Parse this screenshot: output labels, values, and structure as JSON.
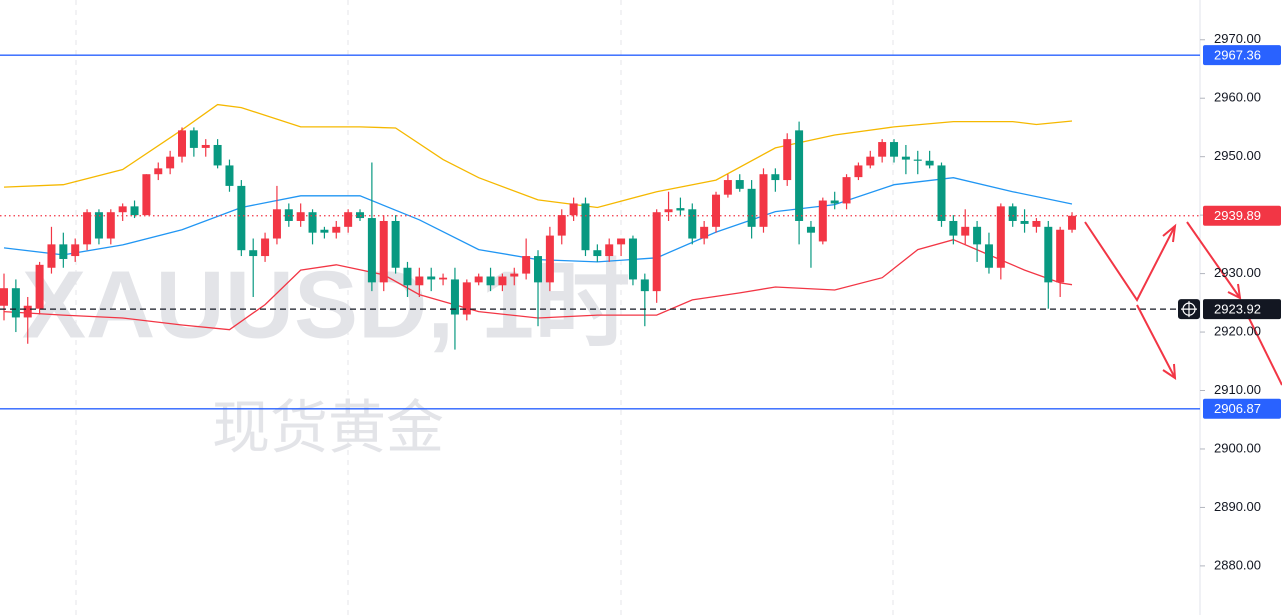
{
  "chart_data": {
    "type": "candlestick",
    "watermark": [
      "XAUUSD, 1时",
      "现货黄金"
    ],
    "up_color": "#f23645",
    "down_color": "#089981",
    "open": [
      2924.5,
      2927.5,
      2922.5,
      2924,
      2931,
      2935,
      2933,
      2935,
      2940.5,
      2936,
      2940.5,
      2941.5,
      2940,
      2947,
      2948,
      2950,
      2954.5,
      2951.5,
      2952,
      2948.5,
      2945,
      2934,
      2933,
      2936,
      2941,
      2939,
      2940.5,
      2937.5,
      2937,
      2938,
      2940.5,
      2939.5,
      2928.5,
      2939,
      2931,
      2928,
      2929.5,
      2929,
      2929,
      2923,
      2928.5,
      2929.5,
      2928,
      2929.5,
      2930,
      2933,
      2928.5,
      2936.5,
      2940,
      2942,
      2934,
      2933,
      2935,
      2936,
      2929,
      2927,
      2940.5,
      2941.2,
      2941,
      2936,
      2938,
      2943.5,
      2946,
      2944.5,
      2938,
      2947,
      2946,
      2954.5,
      2938,
      2935.5,
      2942.5,
      2942,
      2946.5,
      2948.5,
      2950,
      2952.5,
      2950,
      2949.5,
      2949.3,
      2948.5,
      2939,
      2936.5,
      2938,
      2935,
      2931,
      2941.5,
      2939,
      2938,
      2938,
      2928.5,
      2937.5
    ],
    "high": [
      2930,
      2929,
      2926,
      2932,
      2938,
      2937,
      2936,
      2941,
      2941,
      2941,
      2942,
      2942.5,
      2947,
      2949,
      2951,
      2955,
      2955,
      2953,
      2953,
      2949.5,
      2946,
      2936,
      2937,
      2945,
      2942,
      2942,
      2941,
      2938,
      2939,
      2941,
      2941,
      2949,
      2940,
      2940,
      2932,
      2931,
      2931,
      2930,
      2931,
      2929,
      2930,
      2931,
      2930,
      2931,
      2936,
      2934,
      2938,
      2941,
      2943,
      2943,
      2935,
      2936,
      2936,
      2936.5,
      2930,
      2941,
      2944,
      2943,
      2942,
      2939,
      2944,
      2947,
      2947,
      2946,
      2948,
      2948,
      2954,
      2956,
      2939,
      2943,
      2944,
      2947,
      2949,
      2951,
      2953,
      2953,
      2952,
      2951,
      2951,
      2949,
      2940,
      2941,
      2939,
      2937,
      2942,
      2942,
      2941,
      2939.5,
      2939,
      2938,
      2940.5
    ],
    "low": [
      2922,
      2920,
      2918,
      2923,
      2930,
      2931,
      2932,
      2934,
      2935,
      2935,
      2939,
      2939.5,
      2940,
      2946,
      2947,
      2949,
      2950,
      2950,
      2948,
      2944,
      2933,
      2926,
      2932,
      2935,
      2938,
      2938,
      2935,
      2936,
      2936,
      2937,
      2939,
      2927,
      2927,
      2930,
      2926,
      2926,
      2927,
      2928,
      2917,
      2922,
      2928,
      2927,
      2927,
      2928,
      2929,
      2921,
      2927,
      2935,
      2939,
      2933,
      2932,
      2932,
      2933,
      2928,
      2921,
      2925,
      2939,
      2940,
      2935,
      2935,
      2937,
      2943,
      2944,
      2936,
      2937,
      2944,
      2945,
      2935,
      2931,
      2935,
      2941,
      2941,
      2946,
      2948,
      2949,
      2949,
      2947,
      2947,
      2948,
      2938,
      2935,
      2935,
      2932,
      2930,
      2929,
      2938,
      2937,
      2937,
      2924,
      2926,
      2937
    ],
    "close": [
      2927.5,
      2922.5,
      2924.5,
      2931.5,
      2935,
      2932.5,
      2935,
      2940.5,
      2936,
      2940.5,
      2941.5,
      2940,
      2947,
      2948,
      2950,
      2954.5,
      2951.5,
      2952,
      2948.5,
      2945,
      2934,
      2933,
      2936,
      2941,
      2939,
      2940.5,
      2937,
      2937,
      2938,
      2940.5,
      2939.5,
      2928.5,
      2939,
      2931,
      2928,
      2929.5,
      2929,
      2929.3,
      2923,
      2928.5,
      2929.5,
      2928,
      2929.5,
      2930,
      2933,
      2928.5,
      2936.5,
      2940,
      2942,
      2934,
      2933,
      2935,
      2936,
      2929,
      2927,
      2940.5,
      2941,
      2940.8,
      2936,
      2938,
      2943.5,
      2946,
      2944.5,
      2938,
      2947,
      2946,
      2953,
      2939,
      2937,
      2942.5,
      2942,
      2946.5,
      2948.5,
      2950,
      2952.5,
      2950,
      2949.5,
      2949.3,
      2948.5,
      2939,
      2936.5,
      2938,
      2935,
      2931,
      2941.5,
      2939,
      2938.5,
      2939,
      2928.5,
      2937.5,
      2939.89
    ],
    "bands": [
      {
        "color": "#f5b800",
        "x": [
          0,
          5,
          10,
          15,
          18,
          20,
          25,
          30,
          33,
          37,
          40,
          45,
          50,
          55,
          60,
          65,
          70,
          75,
          80,
          85,
          87,
          90
        ],
        "values": [
          2944.8,
          2945.2,
          2947.8,
          2954.6,
          2958.9,
          2958.4,
          2955.1,
          2955.1,
          2954.9,
          2949.5,
          2946.4,
          2942.6,
          2941.3,
          2944,
          2946,
          2951.5,
          2953.7,
          2955.1,
          2956,
          2956,
          2955.5,
          2956.1
        ]
      },
      {
        "color": "#2196f3",
        "x": [
          0,
          5,
          10,
          15,
          20,
          25,
          30,
          35,
          40,
          45,
          50,
          55,
          60,
          65,
          70,
          75,
          80,
          85,
          90
        ],
        "values": [
          2934.4,
          2933.2,
          2934.9,
          2937.5,
          2941.3,
          2943.3,
          2943.3,
          2939.2,
          2934.1,
          2932.4,
          2932,
          2932.7,
          2937.1,
          2940.6,
          2941.8,
          2945.2,
          2946.4,
          2944,
          2941.9
        ]
      },
      {
        "color": "#f23645",
        "x": [
          0,
          5,
          10,
          15,
          19,
          22,
          25,
          28,
          32,
          35,
          40,
          45,
          50,
          55,
          58,
          62,
          65,
          70,
          74,
          77,
          80,
          83,
          86,
          89,
          90
        ],
        "values": [
          2923.5,
          2922.9,
          2922.4,
          2921.2,
          2920.4,
          2924.7,
          2930.6,
          2931.5,
          2929.8,
          2926.4,
          2923.5,
          2922.4,
          2922.9,
          2922.9,
          2925.5,
          2926.7,
          2927.7,
          2927.2,
          2929.3,
          2934.1,
          2935.8,
          2933.2,
          2930.6,
          2928.4,
          2928.1
        ]
      }
    ],
    "levels": [
      {
        "value": 2967.36,
        "color": "#2962ff",
        "style": "solid"
      },
      {
        "value": 2939.89,
        "color": "#f23645",
        "style": "dotted"
      },
      {
        "value": 2923.92,
        "color": "#131722",
        "style": "dashed"
      },
      {
        "value": 2906.87,
        "color": "#2962ff",
        "style": "solid"
      }
    ],
    "ylim": [
      2871.6,
      2976.8
    ],
    "yticks": [
      {
        "value": 2880,
        "label": "2880.00"
      },
      {
        "value": 2890,
        "label": "2890.00"
      },
      {
        "value": 2900,
        "label": "2900.00"
      },
      {
        "value": 2910,
        "label": "2910.00"
      },
      {
        "value": 2920,
        "label": "2920.00"
      },
      {
        "value": 2930,
        "label": "2930.00"
      },
      {
        "value": 2940,
        "label": "2940.00"
      },
      {
        "value": 2950,
        "label": "2950.00"
      },
      {
        "value": 2960,
        "label": "2960.00"
      },
      {
        "value": 2970,
        "label": "2970.00"
      }
    ]
  }
}
